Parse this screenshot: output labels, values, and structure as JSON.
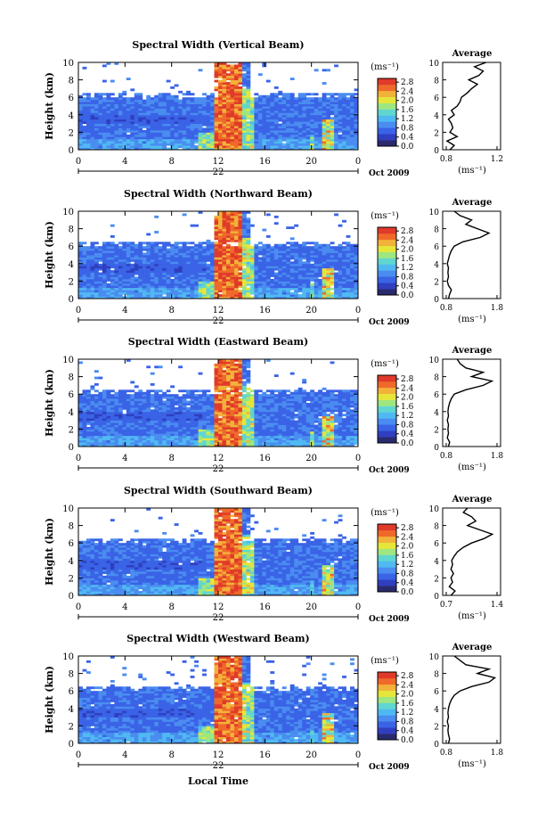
{
  "figure": {
    "xlabel": "Local Time",
    "ylabel": "Height (km)",
    "date_label": "Oct 2009",
    "day_label": "22",
    "xticks": [
      "0",
      "4",
      "8",
      "12",
      "16",
      "20",
      "0"
    ],
    "yticks": [
      "0",
      "2",
      "4",
      "6",
      "8",
      "10"
    ],
    "unit_label": "(ms⁻¹)",
    "colorbar_ticks": [
      "0.0",
      "0.4",
      "0.8",
      "1.2",
      "1.6",
      "2.0",
      "2.4",
      "2.8"
    ],
    "colorbar_colors": [
      "#2a2a6e",
      "#2f3fbf",
      "#3a63e6",
      "#4a8cf0",
      "#50b9f2",
      "#5fd6d0",
      "#9ee680",
      "#e6e63a",
      "#f2b23a",
      "#ef6a2a",
      "#e03a2a"
    ],
    "avg_title": "Average",
    "avg_unit_label": "(ms⁻¹)",
    "avg_yticks": [
      "0",
      "2",
      "4",
      "6",
      "8",
      "10"
    ]
  },
  "chart_data": [
    {
      "type": "heatmap",
      "title": "Spectral Width (Vertical Beam)",
      "x_range_hours": [
        0,
        24
      ],
      "ylim_km": [
        0,
        10
      ],
      "clim": [
        0.0,
        2.8
      ],
      "avg_profile": {
        "title": "Average",
        "xlim": [
          0.8,
          1.2
        ],
        "xticks": [
          "0.8",
          "1.2"
        ],
        "height_km": [
          0,
          0.5,
          1,
          1.5,
          2,
          2.5,
          3,
          3.5,
          4,
          4.5,
          5,
          5.5,
          6,
          6.5,
          7,
          7.5,
          8,
          8.5,
          9,
          9.5,
          10
        ],
        "values": [
          0.85,
          0.88,
          0.83,
          0.9,
          0.85,
          0.87,
          0.86,
          0.84,
          0.88,
          0.86,
          0.9,
          0.92,
          0.93,
          0.97,
          1.0,
          1.04,
          0.98,
          1.05,
          1.08,
          1.02,
          1.1
        ]
      }
    },
    {
      "type": "heatmap",
      "title": "Spectral Width (Northward Beam)",
      "x_range_hours": [
        0,
        24
      ],
      "ylim_km": [
        0,
        10
      ],
      "clim": [
        0.0,
        2.8
      ],
      "avg_profile": {
        "title": "Average",
        "xlim": [
          0.8,
          1.8
        ],
        "xticks": [
          "0.8",
          "1.8"
        ],
        "height_km": [
          0,
          0.5,
          1,
          1.5,
          2,
          2.5,
          3,
          3.5,
          4,
          4.5,
          5,
          5.5,
          6,
          6.5,
          7,
          7.5,
          8,
          8.5,
          9,
          9.5,
          10
        ],
        "values": [
          0.9,
          0.92,
          0.95,
          0.9,
          0.88,
          0.9,
          0.89,
          0.9,
          0.88,
          0.9,
          0.92,
          0.95,
          1.0,
          1.15,
          1.45,
          1.6,
          1.4,
          1.2,
          1.3,
          1.1,
          1.0
        ]
      }
    },
    {
      "type": "heatmap",
      "title": "Spectral Width (Eastward Beam)",
      "x_range_hours": [
        0,
        24
      ],
      "ylim_km": [
        0,
        10
      ],
      "clim": [
        0.0,
        2.8
      ],
      "avg_profile": {
        "title": "Average",
        "xlim": [
          0.8,
          1.8
        ],
        "xticks": [
          "0.8",
          "1.8"
        ],
        "height_km": [
          0,
          0.5,
          1,
          1.5,
          2,
          2.5,
          3,
          3.5,
          4,
          4.5,
          5,
          5.5,
          6,
          6.5,
          7,
          7.5,
          8,
          8.5,
          9,
          9.5,
          10
        ],
        "values": [
          0.9,
          0.92,
          0.88,
          0.9,
          0.89,
          0.9,
          0.88,
          0.9,
          0.89,
          0.9,
          0.92,
          0.95,
          1.0,
          1.2,
          1.5,
          1.65,
          1.3,
          1.5,
          1.2,
          1.1,
          1.05
        ]
      }
    },
    {
      "type": "heatmap",
      "title": "Spectral Width (Southward Beam)",
      "x_range_hours": [
        0,
        24
      ],
      "ylim_km": [
        0,
        10
      ],
      "clim": [
        0.0,
        2.8
      ],
      "avg_profile": {
        "title": "Average",
        "xlim": [
          0.7,
          1.4
        ],
        "xticks": [
          "0.7",
          "1.4"
        ],
        "height_km": [
          0,
          0.5,
          1,
          1.5,
          2,
          2.5,
          3,
          3.5,
          4,
          4.5,
          5,
          5.5,
          6,
          6.5,
          7,
          7.5,
          8,
          8.5,
          9,
          9.5,
          10
        ],
        "values": [
          0.8,
          0.85,
          0.78,
          0.82,
          0.8,
          0.83,
          0.8,
          0.82,
          0.81,
          0.84,
          0.88,
          0.95,
          1.05,
          1.2,
          1.3,
          1.15,
          1.0,
          1.1,
          1.05,
          0.95,
          1.0
        ]
      }
    },
    {
      "type": "heatmap",
      "title": "Spectral Width (Westward Beam)",
      "x_range_hours": [
        0,
        24
      ],
      "ylim_km": [
        0,
        10
      ],
      "clim": [
        0.0,
        2.8
      ],
      "avg_profile": {
        "title": "Average",
        "xlim": [
          0.8,
          1.8
        ],
        "xticks": [
          "0.8",
          "1.8"
        ],
        "height_km": [
          0,
          0.5,
          1,
          1.5,
          2,
          2.5,
          3,
          3.5,
          4,
          4.5,
          5,
          5.5,
          6,
          6.5,
          7,
          7.5,
          8,
          8.5,
          9,
          9.5,
          10
        ],
        "values": [
          0.9,
          0.92,
          0.9,
          0.89,
          0.9,
          0.88,
          0.9,
          0.89,
          0.9,
          0.92,
          0.95,
          1.0,
          1.1,
          1.3,
          1.6,
          1.7,
          1.4,
          1.6,
          1.2,
          1.1,
          1.0
        ]
      }
    }
  ]
}
